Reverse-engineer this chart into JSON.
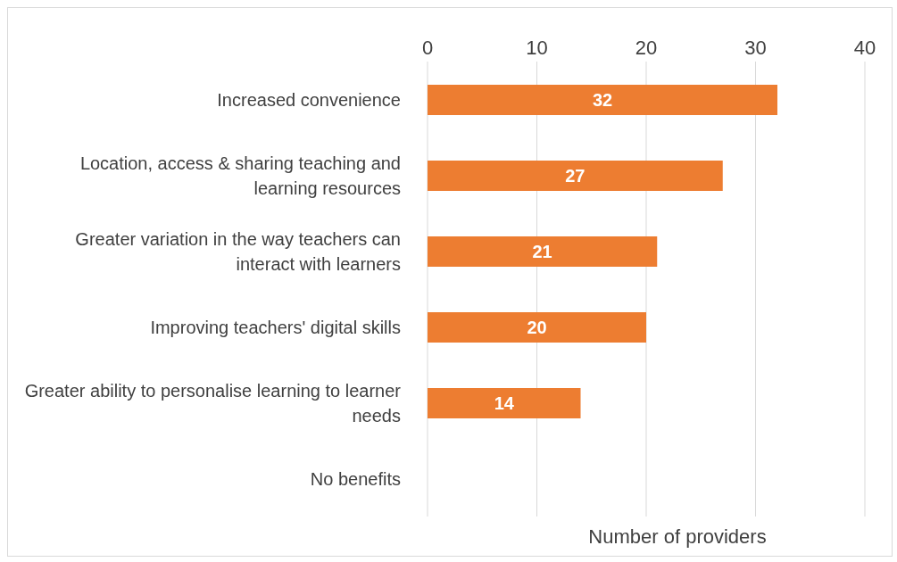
{
  "chart_data": {
    "type": "bar",
    "orientation": "horizontal",
    "categories": [
      "Increased convenience",
      "Location, access & sharing teaching and learning resources",
      "Greater variation in the way teachers can interact with learners",
      "Improving teachers' digital skills",
      "Greater ability to personalise learning to learner needs",
      "No benefits"
    ],
    "values": [
      32,
      27,
      21,
      20,
      14,
      0
    ],
    "value_labels": [
      "32",
      "27",
      "21",
      "20",
      "14",
      null
    ],
    "color": "#ed7d31",
    "xlabel": "Number of providers",
    "xlim": [
      0,
      40
    ],
    "xticks": [
      0,
      10,
      20,
      30,
      40
    ],
    "grid": "x",
    "legend": false
  }
}
